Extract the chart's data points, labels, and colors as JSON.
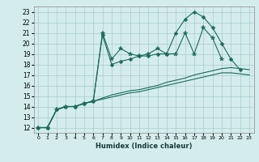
{
  "xlabel": "Humidex (Indice chaleur)",
  "ylabel": "",
  "bg_color": "#d4ecec",
  "grid_color": "#a8cccc",
  "line_color": "#1a6b5a",
  "xlim": [
    -0.5,
    23.5
  ],
  "ylim": [
    11.5,
    23.5
  ],
  "yticks": [
    12,
    13,
    14,
    15,
    16,
    17,
    18,
    19,
    20,
    21,
    22,
    23
  ],
  "xticks": [
    0,
    1,
    2,
    3,
    4,
    5,
    6,
    7,
    8,
    9,
    10,
    11,
    12,
    13,
    14,
    15,
    16,
    17,
    18,
    19,
    20,
    21,
    22,
    23
  ],
  "lines": [
    {
      "x": [
        0,
        1,
        2,
        3,
        4,
        5,
        6,
        7,
        8,
        9,
        10,
        11,
        12,
        13,
        14,
        15,
        16,
        17,
        18,
        19,
        20
      ],
      "y": [
        12,
        12,
        13.7,
        14.0,
        14.0,
        14.3,
        14.5,
        21.0,
        18.5,
        19.5,
        19.0,
        18.8,
        19.0,
        19.5,
        19.0,
        19.0,
        21.0,
        19.0,
        21.5,
        20.5,
        18.5
      ],
      "marker": "*",
      "markersize": 4
    },
    {
      "x": [
        0,
        1,
        2,
        3,
        4,
        5,
        6,
        7,
        8,
        9,
        10,
        11,
        12,
        13,
        14,
        15,
        16,
        17,
        18,
        19,
        20,
        21,
        22
      ],
      "y": [
        12,
        12,
        13.7,
        14.0,
        14.0,
        14.3,
        14.5,
        20.8,
        18.0,
        18.3,
        18.5,
        18.8,
        18.8,
        19.0,
        19.0,
        21.0,
        22.3,
        23.0,
        22.5,
        21.5,
        20.0,
        18.5,
        17.5
      ],
      "marker": "D",
      "markersize": 2.5
    },
    {
      "x": [
        0,
        1,
        2,
        3,
        4,
        5,
        6,
        7,
        8,
        9,
        10,
        11,
        12,
        13,
        14,
        15,
        16,
        17,
        18,
        19,
        20,
        21,
        22,
        23
      ],
      "y": [
        12,
        12,
        13.7,
        14.0,
        14.0,
        14.3,
        14.5,
        14.8,
        15.1,
        15.3,
        15.5,
        15.6,
        15.8,
        16.0,
        16.3,
        16.5,
        16.7,
        17.0,
        17.2,
        17.4,
        17.6,
        17.7,
        17.6,
        17.5
      ],
      "marker": null,
      "markersize": 0
    },
    {
      "x": [
        0,
        1,
        2,
        3,
        4,
        5,
        6,
        7,
        8,
        9,
        10,
        11,
        12,
        13,
        14,
        15,
        16,
        17,
        18,
        19,
        20,
        21,
        22,
        23
      ],
      "y": [
        12,
        12,
        13.7,
        14.0,
        14.0,
        14.3,
        14.5,
        14.7,
        14.9,
        15.1,
        15.3,
        15.4,
        15.6,
        15.8,
        16.0,
        16.2,
        16.4,
        16.6,
        16.8,
        17.0,
        17.2,
        17.2,
        17.1,
        17.0
      ],
      "marker": null,
      "markersize": 0
    }
  ]
}
